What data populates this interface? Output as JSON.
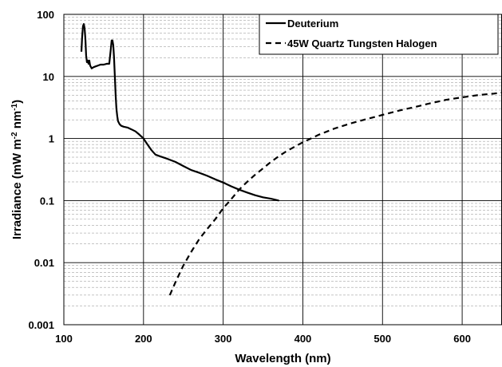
{
  "chart_data": {
    "type": "line",
    "xlabel": "Wavelength (nm)",
    "ylabel_main": "Irradiance (mW m",
    "ylabel_sup1": "-2",
    "ylabel_mid": " nm",
    "ylabel_sup2": "-1",
    "ylabel_end": ")",
    "xlim": [
      100,
      650
    ],
    "ylim": [
      0.001,
      100
    ],
    "y_scale": "log",
    "grid": true,
    "legend_position": "top-right",
    "x_ticks": [
      100,
      200,
      300,
      400,
      500,
      600
    ],
    "x_tick_labels": [
      "100",
      "200",
      "300",
      "400",
      "500",
      "600"
    ],
    "y_ticks": [
      0.001,
      0.01,
      0.1,
      1,
      10,
      100
    ],
    "y_tick_labels": [
      "0.001",
      "0.01",
      "0.1",
      "1",
      "10",
      "100"
    ],
    "series": [
      {
        "name": "Deuterium",
        "style": "solid",
        "color": "#000000",
        "x": [
          122,
          123,
          124,
          125,
          126,
          127,
          128,
          129,
          130,
          131,
          132,
          133,
          135,
          137,
          140,
          143,
          146,
          150,
          154,
          157,
          159,
          160,
          161,
          162,
          163,
          164,
          165,
          166,
          167,
          168,
          170,
          172,
          175,
          180,
          185,
          190,
          195,
          200,
          205,
          210,
          215,
          220,
          230,
          240,
          250,
          260,
          270,
          280,
          290,
          300,
          310,
          320,
          330,
          340,
          350,
          360,
          370
        ],
        "y": [
          25,
          45,
          65,
          70,
          60,
          40,
          22,
          17,
          18,
          16,
          18,
          15,
          13.5,
          14,
          14.5,
          15,
          15.5,
          15.5,
          16,
          16,
          28,
          38,
          38,
          32,
          20,
          10,
          5,
          3,
          2.3,
          1.9,
          1.7,
          1.6,
          1.55,
          1.5,
          1.4,
          1.3,
          1.15,
          1.0,
          0.8,
          0.65,
          0.55,
          0.52,
          0.47,
          0.42,
          0.36,
          0.31,
          0.28,
          0.25,
          0.22,
          0.195,
          0.17,
          0.15,
          0.135,
          0.122,
          0.113,
          0.107,
          0.1
        ]
      },
      {
        "name": "45W Quartz Tungsten Halogen",
        "style": "dashed",
        "color": "#000000",
        "x": [
          233,
          240,
          250,
          260,
          270,
          280,
          290,
          300,
          310,
          320,
          330,
          340,
          350,
          360,
          370,
          380,
          390,
          400,
          420,
          440,
          460,
          480,
          500,
          520,
          540,
          560,
          580,
          600,
          620,
          640,
          650
        ],
        "y": [
          0.003,
          0.0048,
          0.009,
          0.015,
          0.024,
          0.035,
          0.05,
          0.075,
          0.105,
          0.15,
          0.2,
          0.26,
          0.33,
          0.42,
          0.52,
          0.63,
          0.74,
          0.87,
          1.15,
          1.45,
          1.75,
          2.05,
          2.4,
          2.8,
          3.2,
          3.7,
          4.2,
          4.6,
          5.0,
          5.3,
          5.5
        ]
      }
    ]
  }
}
